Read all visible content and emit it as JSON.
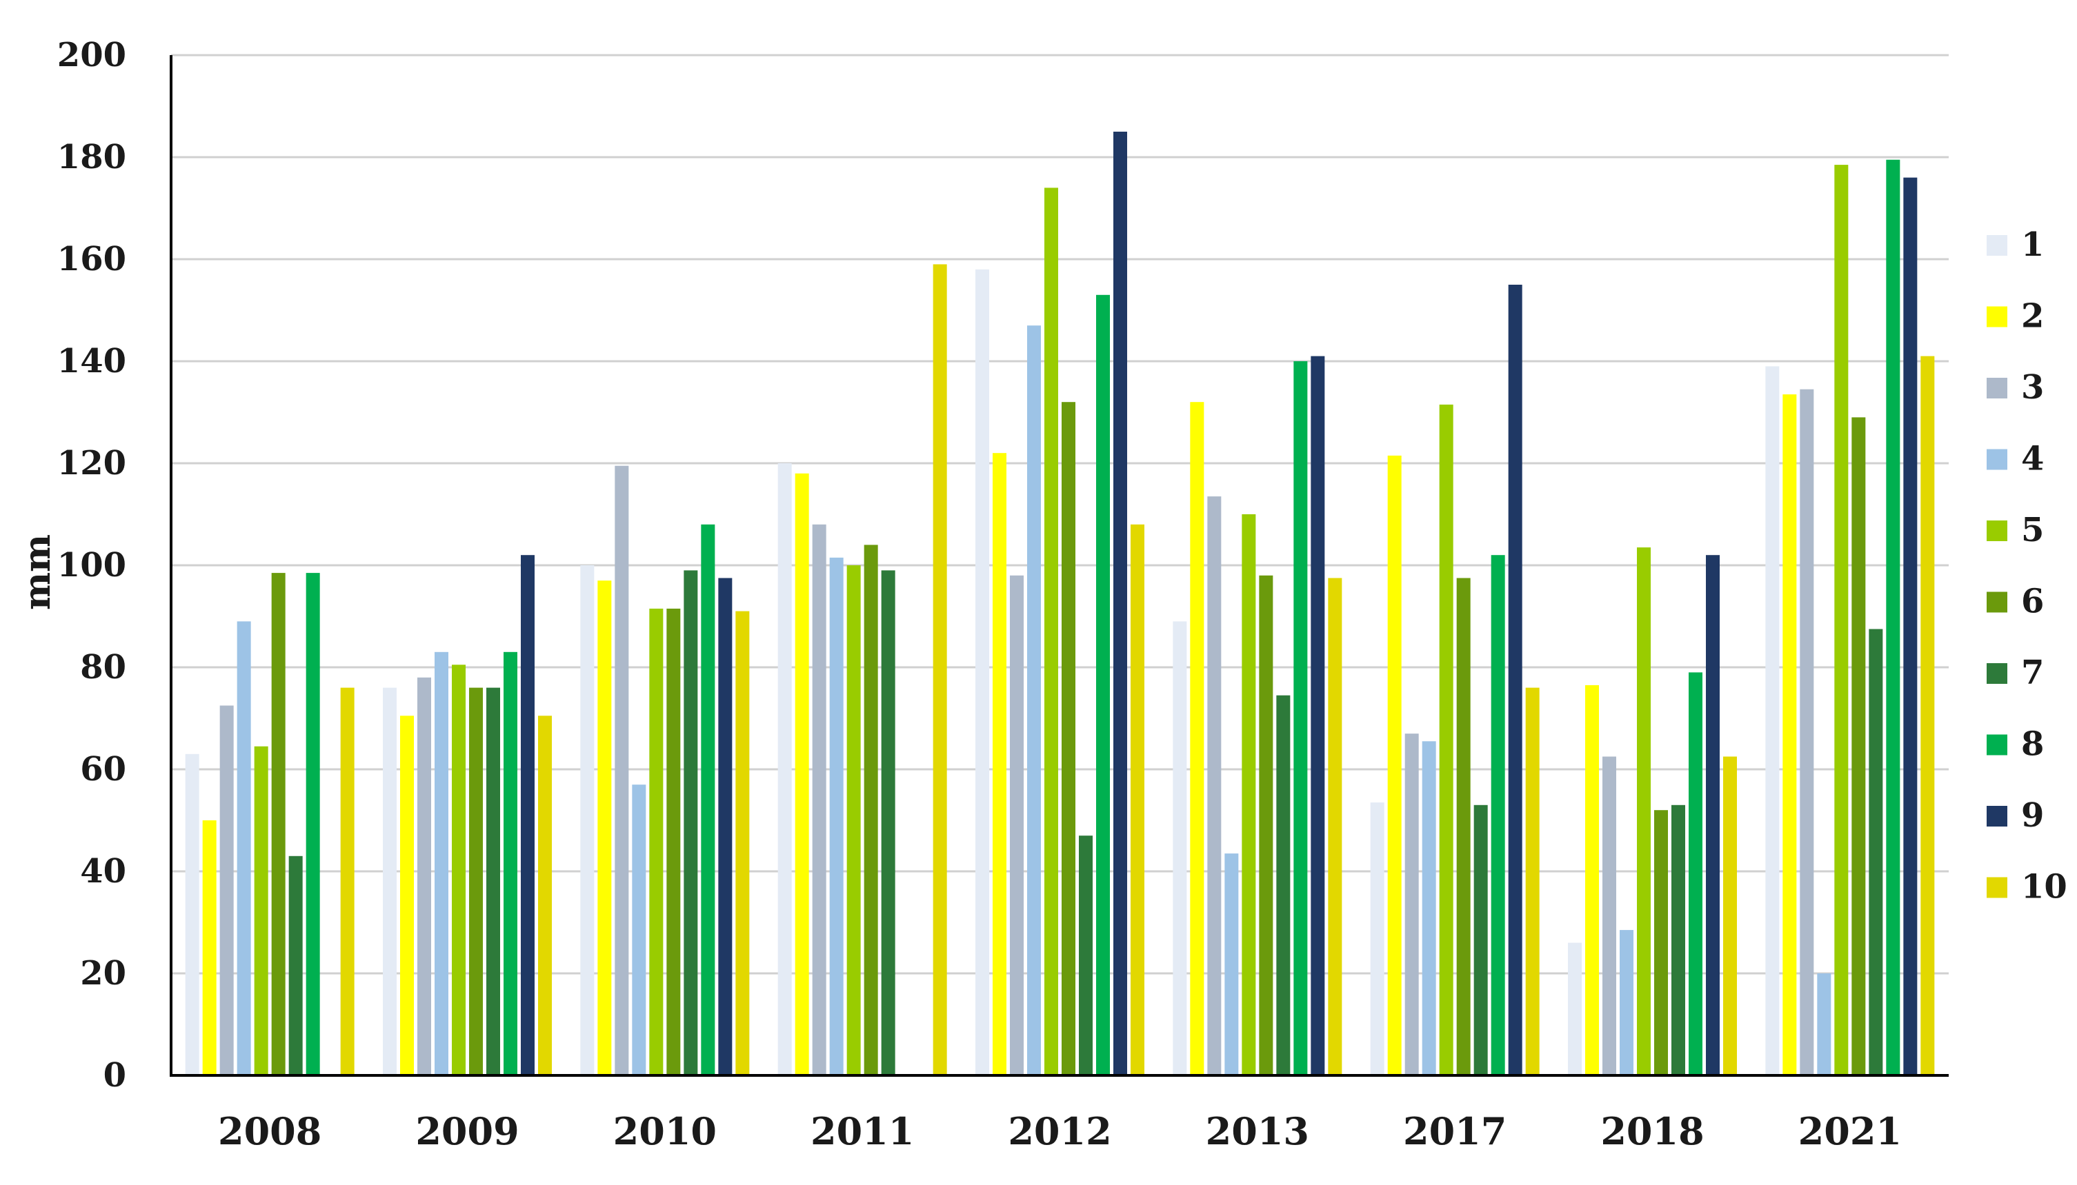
{
  "chart_data": {
    "type": "bar",
    "title": "",
    "xlabel": "",
    "ylabel": "mm",
    "ylim": [
      0,
      200
    ],
    "yticks": [
      0,
      20,
      40,
      60,
      80,
      100,
      120,
      140,
      160,
      180,
      200
    ],
    "grid": true,
    "legend_position": "right",
    "categories": [
      "2008",
      "2009",
      "2010",
      "2011",
      "2012",
      "2013",
      "2017",
      "2018",
      "2021"
    ],
    "series": [
      {
        "name": "1",
        "color": "#e4ebf5",
        "values": [
          63,
          76,
          100,
          120,
          158,
          89,
          53.5,
          26,
          139
        ]
      },
      {
        "name": "2",
        "color": "#ffff00",
        "values": [
          50,
          70.5,
          97,
          118,
          122,
          132,
          121.5,
          76.5,
          133.5
        ]
      },
      {
        "name": "3",
        "color": "#adb9ca",
        "values": [
          72.5,
          78,
          119.5,
          108,
          98,
          113.5,
          67,
          62.5,
          134.5
        ]
      },
      {
        "name": "4",
        "color": "#9dc3e6",
        "values": [
          89,
          83,
          57,
          101.5,
          147,
          43.5,
          65.5,
          28.5,
          20
        ]
      },
      {
        "name": "5",
        "color": "#99cc00",
        "values": [
          64.5,
          80.5,
          91.5,
          100,
          174,
          110,
          131.5,
          103.5,
          178.5
        ]
      },
      {
        "name": "6",
        "color": "#6b9a0c",
        "values": [
          98.5,
          76,
          91.5,
          104,
          132,
          98,
          97.5,
          52,
          129
        ]
      },
      {
        "name": "7",
        "color": "#2d7a3a",
        "values": [
          43,
          76,
          99,
          99,
          47,
          74.5,
          53,
          53,
          87.5
        ]
      },
      {
        "name": "8",
        "color": "#00b050",
        "values": [
          98.5,
          83,
          108,
          0,
          153,
          140,
          102,
          79,
          179.5
        ]
      },
      {
        "name": "9",
        "color": "#1f3864",
        "values": [
          0,
          102,
          97.5,
          0,
          185,
          141,
          155,
          102,
          176
        ]
      },
      {
        "name": "10",
        "color": "#e2d800",
        "values": [
          76,
          70.5,
          91,
          159,
          108,
          97.5,
          76,
          62.5,
          141
        ]
      }
    ]
  }
}
